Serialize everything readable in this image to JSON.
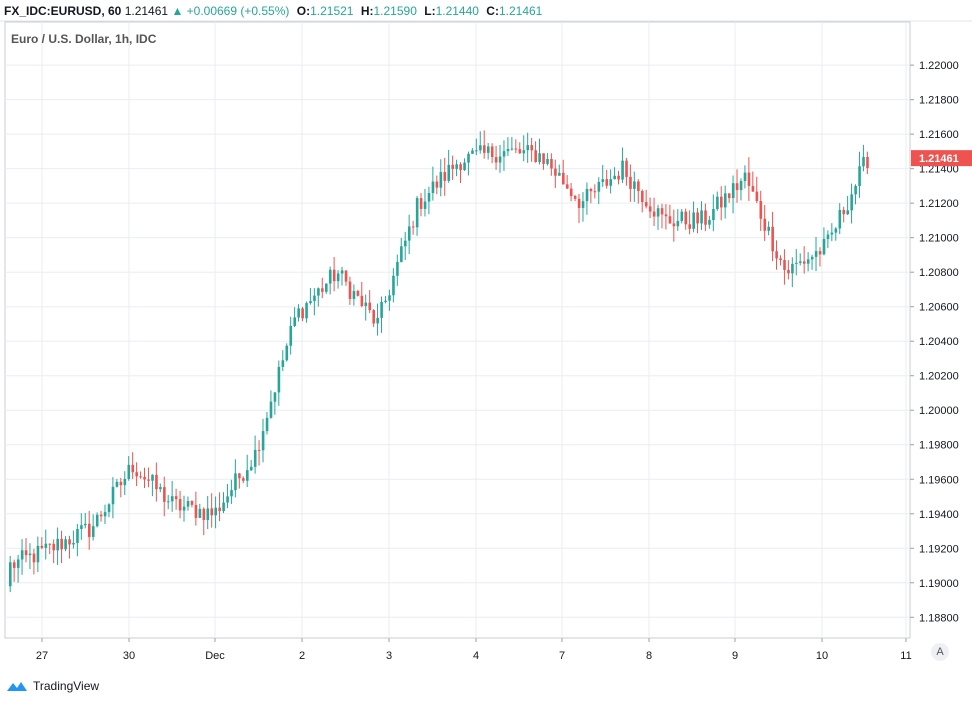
{
  "header": {
    "symbol": "FX_IDC:EURUSD, 60",
    "last": "1.21461",
    "change": "▲ +0.00669 (+0.55%)",
    "o_label": "O:",
    "o_value": "1.21521",
    "h_label": "H:",
    "h_value": "1.21590",
    "l_label": "L:",
    "l_value": "1.21440",
    "c_label": "C:",
    "c_value": "1.21461"
  },
  "subtitle": "Euro / U.S. Dollar, 1h, IDC",
  "footer": {
    "brand": "TradingView"
  },
  "autoscale_button": "A",
  "colors": {
    "up": "#26a69a",
    "down": "#ef5350",
    "grid": "#e9edf2",
    "price_label": "#ef5350"
  },
  "chart_data": {
    "type": "candlestick",
    "xlabel": "",
    "ylabel": "",
    "ylim": [
      1.1868,
      1.2225
    ],
    "y_ticks": [
      "1.22000",
      "1.21800",
      "1.21600",
      "1.21400",
      "1.21200",
      "1.21000",
      "1.20800",
      "1.20600",
      "1.20400",
      "1.20200",
      "1.20000",
      "1.19800",
      "1.19600",
      "1.19400",
      "1.19200",
      "1.19000",
      "1.18800"
    ],
    "x_ticks": [
      "27",
      "30",
      "Dec",
      "2",
      "3",
      "4",
      "7",
      "8",
      "9",
      "10",
      "11"
    ],
    "last_price": "1.21461",
    "grid": true,
    "days": [
      "27",
      "30",
      "Dec",
      "2",
      "3",
      "4",
      "7",
      "8",
      "9",
      "10",
      "11"
    ],
    "daily_closes": [
      1.191,
      1.192,
      1.1932,
      1.1968,
      1.1945,
      1.194,
      1.1975,
      1.2055,
      1.208,
      1.205,
      1.212,
      1.2145,
      1.215,
      1.2148,
      1.212,
      1.214,
      1.211,
      1.211,
      1.2135,
      1.208,
      1.2095,
      1.2146
    ]
  }
}
